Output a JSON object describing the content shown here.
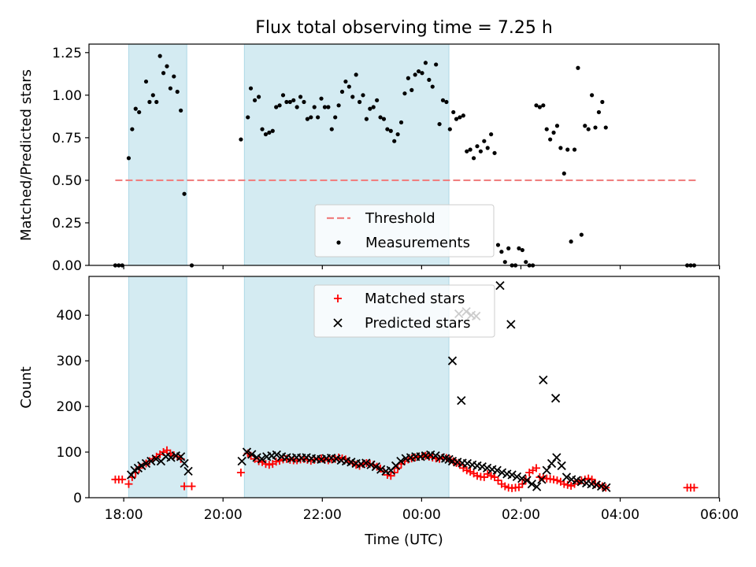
{
  "chart_data": [
    {
      "type": "scatter",
      "panel": "top",
      "title": "Flux total observing time = 7.25 h",
      "xlabel": "",
      "ylabel": "Matched/Predicted stars",
      "x_unit": "hours since 18:00 UTC",
      "xlim": [
        -0.7,
        11.99
      ],
      "ylim": [
        0,
        1.3
      ],
      "yticks": [
        0,
        0.25,
        0.5,
        0.75,
        1.0,
        1.25
      ],
      "ytick_labels": [
        "0.00",
        "0.25",
        "0.50",
        "0.75",
        "1.00",
        "1.25"
      ],
      "grid": false,
      "legend_placement": "lower center",
      "shaded_intervals": [
        {
          "x0": 0.1,
          "x1": 1.27
        },
        {
          "x0": 2.43,
          "x1": 6.55
        }
      ],
      "threshold": {
        "name": "Threshold",
        "value": 0.5,
        "x0": -0.17,
        "x1": 11.55,
        "color": "#f08080"
      },
      "series": [
        {
          "name": "Measurements",
          "color": "#000000",
          "x": [
            -0.17,
            -0.1,
            -0.03,
            0.1,
            0.17,
            0.24,
            0.31,
            0.45,
            0.52,
            0.59,
            0.66,
            0.73,
            0.8,
            0.87,
            0.94,
            1.01,
            1.08,
            1.15,
            1.22,
            1.37,
            2.36,
            2.5,
            2.56,
            2.64,
            2.72,
            2.79,
            2.86,
            2.93,
            3.0,
            3.07,
            3.14,
            3.21,
            3.28,
            3.35,
            3.42,
            3.49,
            3.56,
            3.63,
            3.7,
            3.77,
            3.84,
            3.91,
            3.98,
            4.05,
            4.12,
            4.19,
            4.26,
            4.33,
            4.4,
            4.47,
            4.54,
            4.61,
            4.68,
            4.75,
            4.82,
            4.89,
            4.96,
            5.03,
            5.1,
            5.17,
            5.24,
            5.31,
            5.38,
            5.45,
            5.52,
            5.59,
            5.66,
            5.73,
            5.8,
            5.87,
            5.94,
            6.01,
            6.08,
            6.15,
            6.22,
            6.29,
            6.36,
            6.43,
            6.5,
            6.57,
            6.64,
            6.7,
            6.77,
            6.84,
            6.91,
            6.98,
            7.05,
            7.12,
            7.19,
            7.26,
            7.33,
            7.4,
            7.47,
            7.54,
            7.61,
            7.68,
            7.75,
            7.82,
            7.89,
            7.96,
            8.03,
            8.1,
            8.17,
            8.24,
            8.31,
            8.38,
            8.45,
            8.52,
            8.59,
            8.66,
            8.73,
            8.8,
            8.87,
            8.94,
            9.01,
            9.08,
            9.15,
            9.22,
            9.29,
            9.36,
            9.43,
            9.5,
            9.57,
            9.64,
            9.71,
            11.35,
            11.42,
            11.49
          ],
          "y": [
            0.0,
            0.0,
            0.0,
            0.63,
            0.8,
            0.92,
            0.9,
            1.08,
            0.96,
            1.0,
            0.96,
            1.23,
            1.13,
            1.17,
            1.04,
            1.11,
            1.02,
            0.91,
            0.42,
            0.0,
            0.74,
            0.87,
            1.04,
            0.97,
            0.99,
            0.8,
            0.77,
            0.78,
            0.79,
            0.93,
            0.94,
            1.0,
            0.96,
            0.96,
            0.97,
            0.93,
            0.99,
            0.96,
            0.86,
            0.87,
            0.93,
            0.87,
            0.98,
            0.93,
            0.93,
            0.8,
            0.87,
            0.94,
            1.02,
            1.08,
            1.05,
            0.99,
            1.12,
            0.96,
            1.0,
            0.86,
            0.92,
            0.93,
            0.97,
            0.87,
            0.86,
            0.8,
            0.79,
            0.73,
            0.77,
            0.84,
            1.01,
            1.1,
            1.03,
            1.12,
            1.14,
            1.13,
            1.19,
            1.09,
            1.05,
            1.18,
            0.83,
            0.97,
            0.96,
            0.8,
            0.9,
            0.86,
            0.87,
            0.88,
            0.67,
            0.68,
            0.63,
            0.7,
            0.67,
            0.73,
            0.69,
            0.77,
            0.66,
            0.12,
            0.08,
            0.02,
            0.1,
            0.0,
            0.0,
            0.1,
            0.09,
            0.02,
            0.0,
            0.0,
            0.94,
            0.93,
            0.94,
            0.8,
            0.74,
            0.78,
            0.82,
            0.69,
            0.54,
            0.68,
            0.14,
            0.68,
            1.16,
            0.18,
            0.82,
            0.8,
            1.0,
            0.81,
            0.9,
            0.96,
            0.81,
            0.0,
            0.0,
            0.0
          ]
        }
      ]
    },
    {
      "type": "scatter",
      "panel": "bottom",
      "title": "",
      "xlabel": "Time (UTC)",
      "ylabel": "Count",
      "x_unit": "hours since 18:00 UTC",
      "xlim": [
        -0.7,
        11.99
      ],
      "ylim": [
        0,
        485
      ],
      "yticks": [
        0,
        100,
        200,
        300,
        400
      ],
      "xticks": [
        0,
        2,
        4,
        6,
        8,
        10,
        12
      ],
      "xtick_labels": [
        "18:00",
        "20:00",
        "22:00",
        "00:00",
        "02:00",
        "04:00",
        "06:00"
      ],
      "grid": false,
      "legend_placement": "upper center",
      "shaded_intervals": [
        {
          "x0": 0.1,
          "x1": 1.27
        },
        {
          "x0": 2.43,
          "x1": 6.55
        }
      ],
      "series": [
        {
          "name": "Matched stars",
          "marker": "plus",
          "color": "#ff0000",
          "x": [
            -0.17,
            -0.1,
            -0.03,
            0.1,
            0.17,
            0.24,
            0.31,
            0.45,
            0.52,
            0.59,
            0.66,
            0.73,
            0.8,
            0.87,
            0.94,
            1.01,
            1.08,
            1.15,
            1.22,
            1.37,
            2.36,
            2.5,
            2.56,
            2.64,
            2.72,
            2.79,
            2.86,
            2.93,
            3.0,
            3.07,
            3.14,
            3.21,
            3.28,
            3.35,
            3.42,
            3.49,
            3.56,
            3.63,
            3.7,
            3.77,
            3.84,
            3.91,
            3.98,
            4.05,
            4.12,
            4.19,
            4.26,
            4.33,
            4.4,
            4.47,
            4.54,
            4.61,
            4.68,
            4.75,
            4.82,
            4.89,
            4.96,
            5.03,
            5.1,
            5.17,
            5.24,
            5.31,
            5.38,
            5.45,
            5.52,
            5.59,
            5.66,
            5.73,
            5.8,
            5.87,
            5.94,
            6.01,
            6.08,
            6.15,
            6.22,
            6.29,
            6.36,
            6.43,
            6.5,
            6.57,
            6.64,
            6.7,
            6.77,
            6.84,
            6.91,
            6.98,
            7.05,
            7.12,
            7.19,
            7.26,
            7.33,
            7.4,
            7.47,
            7.54,
            7.61,
            7.68,
            7.75,
            7.82,
            7.89,
            7.96,
            8.03,
            8.1,
            8.17,
            8.24,
            8.31,
            8.38,
            8.45,
            8.52,
            8.59,
            8.66,
            8.73,
            8.8,
            8.87,
            8.94,
            9.01,
            9.08,
            9.15,
            9.22,
            9.29,
            9.36,
            9.43,
            9.5,
            9.57,
            9.64,
            9.71,
            11.35,
            11.42,
            11.49
          ],
          "y": [
            40,
            40,
            40,
            30,
            45,
            55,
            65,
            75,
            80,
            85,
            90,
            95,
            100,
            104,
            97,
            93,
            90,
            85,
            25,
            25,
            55,
            97,
            92,
            85,
            80,
            78,
            74,
            72,
            74,
            79,
            81,
            84,
            85,
            83,
            82,
            82,
            84,
            85,
            83,
            81,
            83,
            84,
            86,
            83,
            82,
            84,
            85,
            88,
            86,
            84,
            80,
            75,
            72,
            70,
            74,
            76,
            74,
            72,
            68,
            64,
            57,
            50,
            48,
            55,
            65,
            74,
            80,
            84,
            86,
            88,
            90,
            91,
            92,
            90,
            88,
            86,
            85,
            88,
            87,
            84,
            80,
            76,
            72,
            65,
            60,
            57,
            53,
            48,
            46,
            45,
            52,
            48,
            45,
            38,
            30,
            25,
            22,
            21,
            22,
            23,
            30,
            40,
            55,
            60,
            65,
            45,
            43,
            42,
            41,
            40,
            38,
            35,
            30,
            28,
            26,
            30,
            35,
            38,
            40,
            42,
            40,
            30,
            28,
            25,
            22,
            22,
            22,
            22
          ]
        },
        {
          "name": "Predicted stars",
          "marker": "x",
          "color": "#000000",
          "x": [
            0.15,
            0.22,
            0.29,
            0.36,
            0.45,
            0.55,
            0.65,
            0.75,
            0.85,
            0.95,
            1.05,
            1.15,
            1.22,
            1.3,
            2.38,
            2.48,
            2.58,
            2.68,
            2.78,
            2.88,
            2.98,
            3.08,
            3.18,
            3.28,
            3.38,
            3.48,
            3.58,
            3.68,
            3.78,
            3.88,
            3.98,
            4.08,
            4.18,
            4.28,
            4.38,
            4.48,
            4.58,
            4.68,
            4.78,
            4.88,
            4.98,
            5.08,
            5.18,
            5.28,
            5.38,
            5.48,
            5.58,
            5.68,
            5.78,
            5.88,
            5.98,
            6.08,
            6.18,
            6.28,
            6.38,
            6.48,
            6.55,
            6.62,
            6.72,
            6.82,
            6.92,
            7.02,
            7.12,
            7.22,
            7.32,
            7.42,
            7.52,
            7.62,
            7.72,
            7.82,
            7.92,
            8.02,
            8.12,
            8.22,
            8.32,
            8.42,
            8.52,
            8.62,
            8.72,
            8.82,
            8.92,
            9.02,
            9.12,
            9.22,
            9.32,
            9.42,
            9.52,
            9.62,
            9.72,
            6.62,
            6.75,
            6.8,
            6.9,
            7.0,
            7.1,
            7.58,
            7.8,
            8.45,
            8.7
          ],
          "y": [
            50,
            60,
            65,
            70,
            75,
            80,
            85,
            80,
            90,
            88,
            92,
            90,
            75,
            58,
            80,
            100,
            95,
            88,
            85,
            90,
            92,
            94,
            90,
            88,
            86,
            88,
            87,
            88,
            86,
            85,
            84,
            86,
            87,
            85,
            82,
            80,
            78,
            75,
            74,
            76,
            72,
            68,
            62,
            58,
            60,
            70,
            80,
            86,
            88,
            90,
            90,
            92,
            94,
            92,
            88,
            86,
            84,
            80,
            78,
            76,
            75,
            72,
            70,
            68,
            65,
            62,
            60,
            55,
            52,
            50,
            46,
            42,
            38,
            30,
            24,
            40,
            60,
            75,
            88,
            70,
            45,
            40,
            38,
            35,
            32,
            30,
            28,
            25,
            22,
            300,
            403,
            213,
            408,
            400,
            398,
            465,
            380,
            258,
            218
          ]
        }
      ]
    }
  ],
  "legends": {
    "top": [
      {
        "label": "Threshold",
        "symbol": "dashed-line",
        "color": "#f08080"
      },
      {
        "label": "Measurements",
        "symbol": "dot",
        "color": "#000000"
      }
    ],
    "bottom": [
      {
        "label": "Matched stars",
        "symbol": "plus",
        "color": "#ff0000"
      },
      {
        "label": "Predicted stars",
        "symbol": "x",
        "color": "#000000"
      }
    ]
  },
  "colors": {
    "shade_fill": "#add8e6",
    "shade_edge": "#add8e6",
    "axes_edge": "#000000",
    "threshold": "#f08080"
  }
}
